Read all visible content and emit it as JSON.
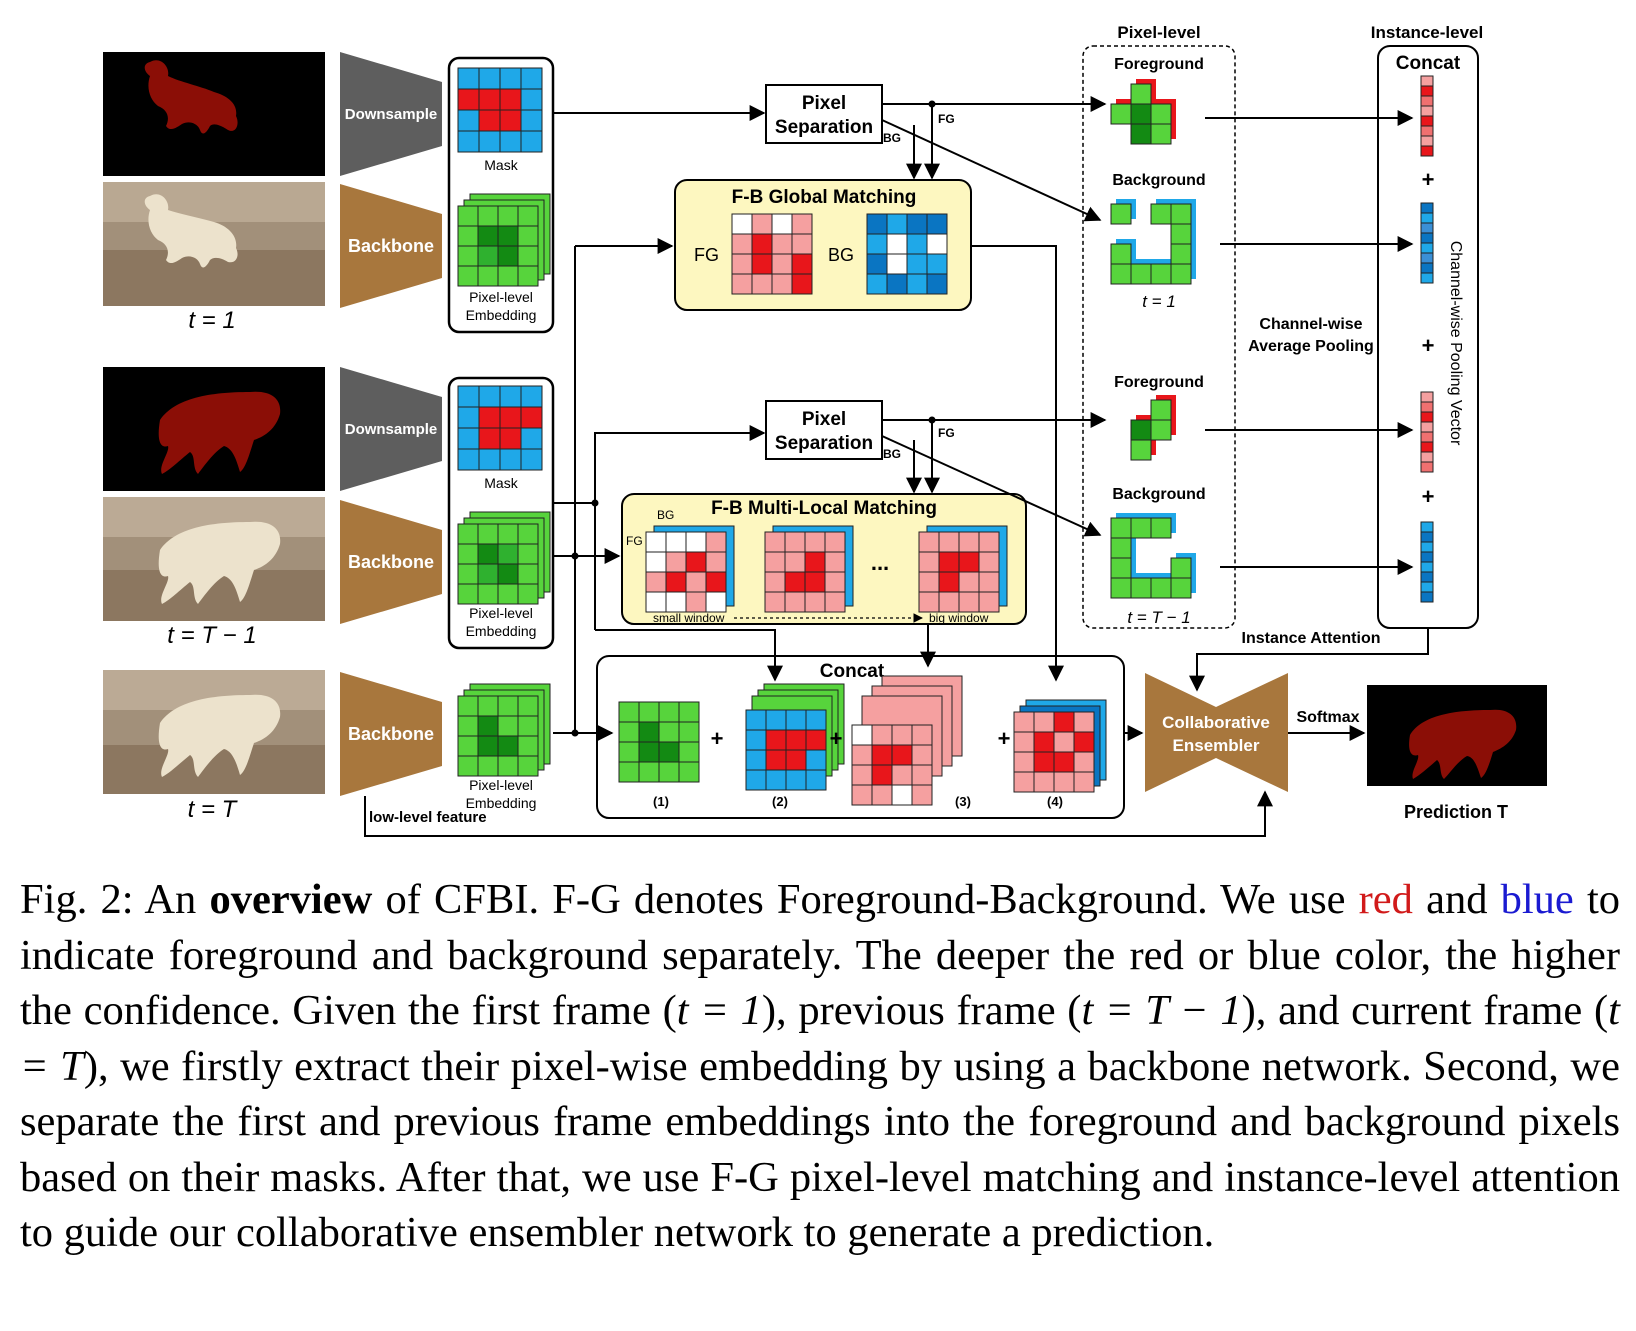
{
  "colors": {
    "fg_deep": "#e8161b",
    "fg_light": "#f5a0a0",
    "bg_deep": "#0a75c2",
    "bg_light": "#1fa8e8",
    "emb_green": "#57d43c",
    "emb_dark": "#138a13",
    "trap_gray": "#5e5e5e",
    "trap_brown": "#a8773d",
    "panel_yellow": "#fdf7c0",
    "mask_red": "#8b0e06"
  },
  "rows": {
    "first": {
      "downsample": "Downsample",
      "backbone": "Backbone",
      "mask_label": "Mask",
      "embedding_label": "Pixel-level Embedding",
      "time": "t = 1"
    },
    "prev": {
      "downsample": "Downsample",
      "backbone": "Backbone",
      "mask_label": "Mask",
      "embedding_label": "Pixel-level Embedding",
      "time": "t = T − 1"
    },
    "current": {
      "backbone": "Backbone",
      "embedding_label": "Pixel-level Embedding",
      "time": "t = T",
      "low_level": "low-level feature"
    }
  },
  "pixel_separation": {
    "label_1": "Pixel",
    "label_2": "Separation",
    "fg": "FG",
    "bg": "BG"
  },
  "global_matching": {
    "title": "F-B Global Matching",
    "fg": "FG",
    "bg": "BG"
  },
  "local_matching": {
    "title": "F-B Multi-Local Matching",
    "bg": "BG",
    "fg": "FG",
    "ellipsis": "...",
    "small": "small window",
    "big": "big window"
  },
  "pixel_level": {
    "title": "Pixel-level",
    "foreground": "Foreground",
    "background": "Background",
    "t1": "t = 1",
    "tT1": "t = T − 1"
  },
  "instance_level": {
    "title": "Instance-level",
    "concat": "Concat",
    "pool_vertical": "Channel-wise Pooling Vector",
    "avg_pool_1": "Channel-wise",
    "avg_pool_2": "Average Pooling",
    "attention": "Instance Attention",
    "plus": "+"
  },
  "concat_box": {
    "title": "Concat",
    "items": [
      "(1)",
      "(2)",
      "(3)",
      "(4)"
    ],
    "plus": "+"
  },
  "ensembler": {
    "label_1": "Collaborative",
    "label_2": "Ensembler",
    "softmax": "Softmax",
    "prediction": "Prediction T"
  },
  "caption": {
    "prefix": "Fig. 2: An ",
    "bold": "overview",
    "part1": " of CFBI. F-G denotes Foreground-Background. We use ",
    "red": "red",
    "part2": " and ",
    "blue": "blue",
    "part3": " to indicate foreground and background separately. The deeper the red or blue color, the higher the confidence. Given the first frame (",
    "t1": "t = 1",
    "part4": "), previous frame (",
    "tT1": "t = T − 1",
    "part5": "), and current frame (",
    "tT": "t = T",
    "part6": "), we firstly extract their pixel-wise embedding by using a backbone network. Second, we separate the first and previous frame embeddings into the foreground and background pixels based on their masks. After that, we use F-G pixel-level matching and instance-level attention to guide our collaborative ensembler network to generate a prediction."
  }
}
